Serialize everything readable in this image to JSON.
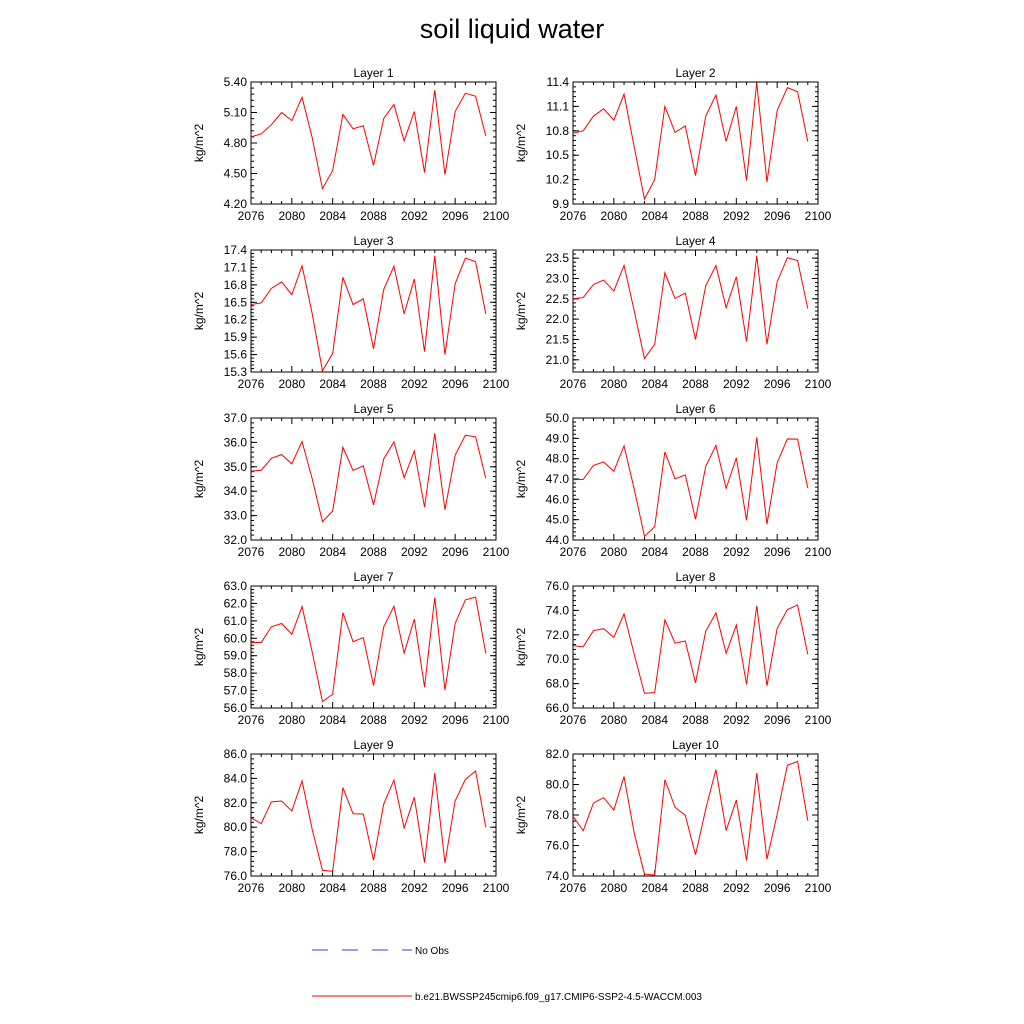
{
  "title": "soil liquid water",
  "legend": {
    "entries": [
      {
        "label": "No Obs",
        "color": "#3b3bd6",
        "style": "dashed"
      },
      {
        "label": "b.e21.BWSSP245cmip6.f09_g17.CMIP6-SSP2-4.5-WACCM.003",
        "color": "#ff0000",
        "style": "solid"
      }
    ]
  },
  "chart_data": [
    {
      "type": "line",
      "title": "Layer 1",
      "ylabel": "kg/m^2",
      "xlim": [
        2076,
        2100
      ],
      "ylim": [
        4.2,
        5.4
      ],
      "xticks": [
        2076,
        2080,
        2084,
        2088,
        2092,
        2096,
        2100
      ],
      "yticks": [
        "4.20",
        "4.50",
        "4.80",
        "5.10",
        "5.40"
      ],
      "x": [
        2076,
        2077,
        2078,
        2079,
        2080,
        2081,
        2082,
        2083,
        2084,
        2085,
        2086,
        2087,
        2088,
        2089,
        2090,
        2091,
        2092,
        2093,
        2094,
        2095,
        2096,
        2097,
        2098,
        2099
      ],
      "series": [
        {
          "color": "#ff0000",
          "values": [
            4.86,
            4.89,
            4.98,
            5.1,
            5.02,
            5.25,
            4.85,
            4.35,
            4.53,
            5.08,
            4.94,
            4.97,
            4.58,
            5.04,
            5.18,
            4.82,
            5.11,
            4.51,
            5.32,
            4.49,
            5.11,
            5.29,
            5.26,
            4.87
          ]
        }
      ]
    },
    {
      "type": "line",
      "title": "Layer 2",
      "ylabel": "kg/m^2",
      "xlim": [
        2076,
        2100
      ],
      "ylim": [
        9.9,
        11.4
      ],
      "xticks": [
        2076,
        2080,
        2084,
        2088,
        2092,
        2096,
        2100
      ],
      "yticks": [
        "9.9",
        "10.2",
        "10.5",
        "10.8",
        "11.1",
        "11.4"
      ],
      "x": [
        2076,
        2077,
        2078,
        2079,
        2080,
        2081,
        2082,
        2083,
        2084,
        2085,
        2086,
        2087,
        2088,
        2089,
        2090,
        2091,
        2092,
        2093,
        2094,
        2095,
        2096,
        2097,
        2098,
        2099
      ],
      "series": [
        {
          "color": "#ff0000",
          "values": [
            10.77,
            10.8,
            10.98,
            11.07,
            10.93,
            11.25,
            10.6,
            9.96,
            10.2,
            11.1,
            10.78,
            10.86,
            10.25,
            10.98,
            11.24,
            10.67,
            11.1,
            10.19,
            11.39,
            10.17,
            11.05,
            11.33,
            11.28,
            10.67
          ]
        }
      ]
    },
    {
      "type": "line",
      "title": "Layer 3",
      "ylabel": "kg/m^2",
      "xlim": [
        2076,
        2100
      ],
      "ylim": [
        15.3,
        17.4
      ],
      "xticks": [
        2076,
        2080,
        2084,
        2088,
        2092,
        2096,
        2100
      ],
      "yticks": [
        "15.3",
        "15.6",
        "15.9",
        "16.2",
        "16.5",
        "16.8",
        "17.1",
        "17.4"
      ],
      "x": [
        2076,
        2077,
        2078,
        2079,
        2080,
        2081,
        2082,
        2083,
        2084,
        2085,
        2086,
        2087,
        2088,
        2089,
        2090,
        2091,
        2092,
        2093,
        2094,
        2095,
        2096,
        2097,
        2098,
        2099
      ],
      "series": [
        {
          "color": "#ff0000",
          "values": [
            16.46,
            16.49,
            16.74,
            16.85,
            16.63,
            17.13,
            16.3,
            15.32,
            15.62,
            16.93,
            16.46,
            16.56,
            15.7,
            16.72,
            17.12,
            16.3,
            16.9,
            15.65,
            17.3,
            15.6,
            16.82,
            17.26,
            17.2,
            16.3
          ]
        }
      ]
    },
    {
      "type": "line",
      "title": "Layer 4",
      "ylabel": "kg/m^2",
      "xlim": [
        2076,
        2100
      ],
      "ylim": [
        20.7,
        23.7
      ],
      "xticks": [
        2076,
        2080,
        2084,
        2088,
        2092,
        2096,
        2100
      ],
      "yticks": [
        "21.0",
        "21.5",
        "22.0",
        "22.5",
        "23.0",
        "23.5"
      ],
      "x": [
        2076,
        2077,
        2078,
        2079,
        2080,
        2081,
        2082,
        2083,
        2084,
        2085,
        2086,
        2087,
        2088,
        2089,
        2090,
        2091,
        2092,
        2093,
        2094,
        2095,
        2096,
        2097,
        2098,
        2099
      ],
      "series": [
        {
          "color": "#ff0000",
          "values": [
            22.5,
            22.53,
            22.85,
            22.96,
            22.69,
            23.32,
            22.2,
            21.03,
            21.38,
            23.14,
            22.51,
            22.64,
            21.5,
            22.82,
            23.32,
            22.28,
            23.04,
            21.45,
            23.56,
            21.38,
            22.92,
            23.51,
            23.44,
            22.26
          ]
        }
      ]
    },
    {
      "type": "line",
      "title": "Layer 5",
      "ylabel": "kg/m^2",
      "xlim": [
        2076,
        2100
      ],
      "ylim": [
        32.0,
        37.0
      ],
      "xticks": [
        2076,
        2080,
        2084,
        2088,
        2092,
        2096,
        2100
      ],
      "yticks": [
        "32.0",
        "33.0",
        "34.0",
        "35.0",
        "36.0",
        "37.0"
      ],
      "x": [
        2076,
        2077,
        2078,
        2079,
        2080,
        2081,
        2082,
        2083,
        2084,
        2085,
        2086,
        2087,
        2088,
        2089,
        2090,
        2091,
        2092,
        2093,
        2094,
        2095,
        2096,
        2097,
        2098,
        2099
      ],
      "series": [
        {
          "color": "#ff0000",
          "values": [
            34.82,
            34.86,
            35.35,
            35.5,
            35.12,
            36.04,
            34.5,
            32.75,
            33.19,
            35.8,
            34.85,
            35.04,
            33.44,
            35.32,
            36.02,
            34.55,
            35.65,
            33.35,
            36.37,
            33.24,
            35.48,
            36.29,
            36.23,
            34.53
          ]
        }
      ]
    },
    {
      "type": "line",
      "title": "Layer 6",
      "ylabel": "kg/m^2",
      "xlim": [
        2076,
        2100
      ],
      "ylim": [
        44.0,
        50.0
      ],
      "xticks": [
        2076,
        2080,
        2084,
        2088,
        2092,
        2096,
        2100
      ],
      "yticks": [
        "44.0",
        "45.0",
        "46.0",
        "47.0",
        "48.0",
        "49.0",
        "50.0"
      ],
      "x": [
        2076,
        2077,
        2078,
        2079,
        2080,
        2081,
        2082,
        2083,
        2084,
        2085,
        2086,
        2087,
        2088,
        2089,
        2090,
        2091,
        2092,
        2093,
        2094,
        2095,
        2096,
        2097,
        2098,
        2099
      ],
      "series": [
        {
          "color": "#ff0000",
          "values": [
            46.96,
            46.98,
            47.67,
            47.84,
            47.38,
            48.63,
            46.5,
            44.18,
            44.65,
            48.33,
            47.01,
            47.2,
            45.02,
            47.62,
            48.65,
            46.54,
            48.04,
            44.97,
            49.05,
            44.78,
            47.8,
            48.97,
            48.96,
            46.55
          ]
        }
      ]
    },
    {
      "type": "line",
      "title": "Layer 7",
      "ylabel": "kg/m^2",
      "xlim": [
        2076,
        2100
      ],
      "ylim": [
        56.0,
        63.0
      ],
      "xticks": [
        2076,
        2080,
        2084,
        2088,
        2092,
        2096,
        2100
      ],
      "yticks": [
        "56.0",
        "57.0",
        "58.0",
        "59.0",
        "60.0",
        "61.0",
        "62.0",
        "63.0"
      ],
      "x": [
        2076,
        2077,
        2078,
        2079,
        2080,
        2081,
        2082,
        2083,
        2084,
        2085,
        2086,
        2087,
        2088,
        2089,
        2090,
        2091,
        2092,
        2093,
        2094,
        2095,
        2096,
        2097,
        2098,
        2099
      ],
      "series": [
        {
          "color": "#ff0000",
          "values": [
            59.76,
            59.76,
            60.66,
            60.85,
            60.23,
            61.82,
            59.2,
            56.37,
            56.79,
            61.47,
            59.8,
            60.04,
            57.28,
            60.65,
            61.84,
            59.15,
            61.1,
            57.2,
            62.34,
            57.03,
            60.85,
            62.2,
            62.36,
            59.14
          ]
        }
      ]
    },
    {
      "type": "line",
      "title": "Layer 8",
      "ylabel": "kg/m^2",
      "xlim": [
        2076,
        2100
      ],
      "ylim": [
        66.0,
        76.0
      ],
      "xticks": [
        2076,
        2080,
        2084,
        2088,
        2092,
        2096,
        2100
      ],
      "yticks": [
        "66.0",
        "68.0",
        "70.0",
        "72.0",
        "74.0",
        "76.0"
      ],
      "x": [
        2076,
        2077,
        2078,
        2079,
        2080,
        2081,
        2082,
        2083,
        2084,
        2085,
        2086,
        2087,
        2088,
        2089,
        2090,
        2091,
        2092,
        2093,
        2094,
        2095,
        2096,
        2097,
        2098,
        2099
      ],
      "series": [
        {
          "color": "#ff0000",
          "values": [
            71.11,
            71.01,
            72.34,
            72.5,
            71.79,
            73.71,
            70.4,
            67.2,
            67.27,
            73.23,
            71.31,
            71.49,
            68.06,
            72.29,
            73.8,
            70.48,
            72.8,
            67.94,
            74.38,
            67.82,
            72.53,
            74.06,
            74.45,
            70.39
          ]
        }
      ]
    },
    {
      "type": "line",
      "title": "Layer 9",
      "ylabel": "kg/m^2",
      "xlim": [
        2076,
        2100
      ],
      "ylim": [
        76.0,
        86.0
      ],
      "xticks": [
        2076,
        2080,
        2084,
        2088,
        2092,
        2096,
        2100
      ],
      "yticks": [
        "76.0",
        "78.0",
        "80.0",
        "82.0",
        "84.0",
        "86.0"
      ],
      "x": [
        2076,
        2077,
        2078,
        2079,
        2080,
        2081,
        2082,
        2083,
        2084,
        2085,
        2086,
        2087,
        2088,
        2089,
        2090,
        2091,
        2092,
        2093,
        2094,
        2095,
        2096,
        2097,
        2098,
        2099
      ],
      "series": [
        {
          "color": "#ff0000",
          "values": [
            80.78,
            80.3,
            82.08,
            82.15,
            81.33,
            83.8,
            79.8,
            76.47,
            76.38,
            83.24,
            81.1,
            81.08,
            77.28,
            81.9,
            83.86,
            79.93,
            82.45,
            77.1,
            84.44,
            77.07,
            82.17,
            83.92,
            84.6,
            79.99
          ]
        }
      ]
    },
    {
      "type": "line",
      "title": "Layer 10",
      "ylabel": "kg/m^2",
      "xlim": [
        2076,
        2100
      ],
      "ylim": [
        74.0,
        82.0
      ],
      "xticks": [
        2076,
        2080,
        2084,
        2088,
        2092,
        2096,
        2100
      ],
      "yticks": [
        "74.0",
        "76.0",
        "78.0",
        "80.0",
        "82.0"
      ],
      "x": [
        2076,
        2077,
        2078,
        2079,
        2080,
        2081,
        2082,
        2083,
        2084,
        2085,
        2086,
        2087,
        2088,
        2089,
        2090,
        2091,
        2092,
        2093,
        2094,
        2095,
        2096,
        2097,
        2098,
        2099
      ],
      "series": [
        {
          "color": "#ff0000",
          "values": [
            77.92,
            76.96,
            78.78,
            79.14,
            78.32,
            80.52,
            76.8,
            74.12,
            74.06,
            80.32,
            78.5,
            77.98,
            75.39,
            78.38,
            80.98,
            76.98,
            78.98,
            75.02,
            80.76,
            75.1,
            78.05,
            81.26,
            81.51,
            77.63
          ]
        }
      ]
    }
  ]
}
